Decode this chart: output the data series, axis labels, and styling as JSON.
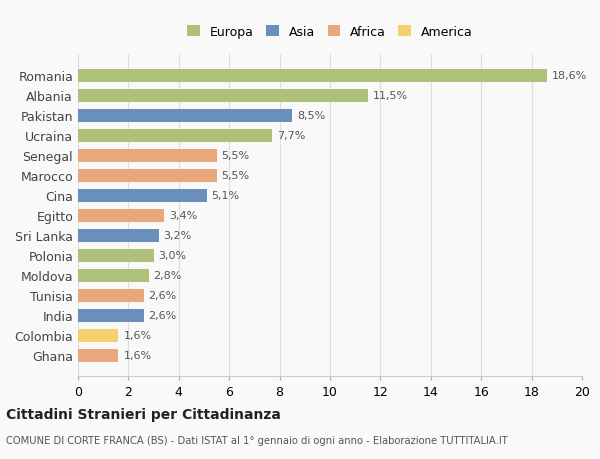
{
  "countries": [
    "Romania",
    "Albania",
    "Pakistan",
    "Ucraina",
    "Senegal",
    "Marocco",
    "Cina",
    "Egitto",
    "Sri Lanka",
    "Polonia",
    "Moldova",
    "Tunisia",
    "India",
    "Colombia",
    "Ghana"
  ],
  "values": [
    18.6,
    11.5,
    8.5,
    7.7,
    5.5,
    5.5,
    5.1,
    3.4,
    3.2,
    3.0,
    2.8,
    2.6,
    2.6,
    1.6,
    1.6
  ],
  "labels": [
    "18,6%",
    "11,5%",
    "8,5%",
    "7,7%",
    "5,5%",
    "5,5%",
    "5,1%",
    "3,4%",
    "3,2%",
    "3,0%",
    "2,8%",
    "2,6%",
    "2,6%",
    "1,6%",
    "1,6%"
  ],
  "continents": [
    "Europa",
    "Europa",
    "Asia",
    "Europa",
    "Africa",
    "Africa",
    "Asia",
    "Africa",
    "Asia",
    "Europa",
    "Europa",
    "Africa",
    "Asia",
    "America",
    "Africa"
  ],
  "colors": {
    "Europa": "#adc178",
    "Asia": "#6a8fbd",
    "Africa": "#e8a87c",
    "America": "#f5d06e"
  },
  "xlim": [
    0,
    20
  ],
  "xticks": [
    0,
    2,
    4,
    6,
    8,
    10,
    12,
    14,
    16,
    18,
    20
  ],
  "title": "Cittadini Stranieri per Cittadinanza",
  "subtitle": "COMUNE DI CORTE FRANCA (BS) - Dati ISTAT al 1° gennaio di ogni anno - Elaborazione TUTTITALIA.IT",
  "background_color": "#f9f9f9",
  "grid_color": "#dddddd",
  "bar_height": 0.65,
  "legend_order": [
    "Europa",
    "Asia",
    "Africa",
    "America"
  ]
}
